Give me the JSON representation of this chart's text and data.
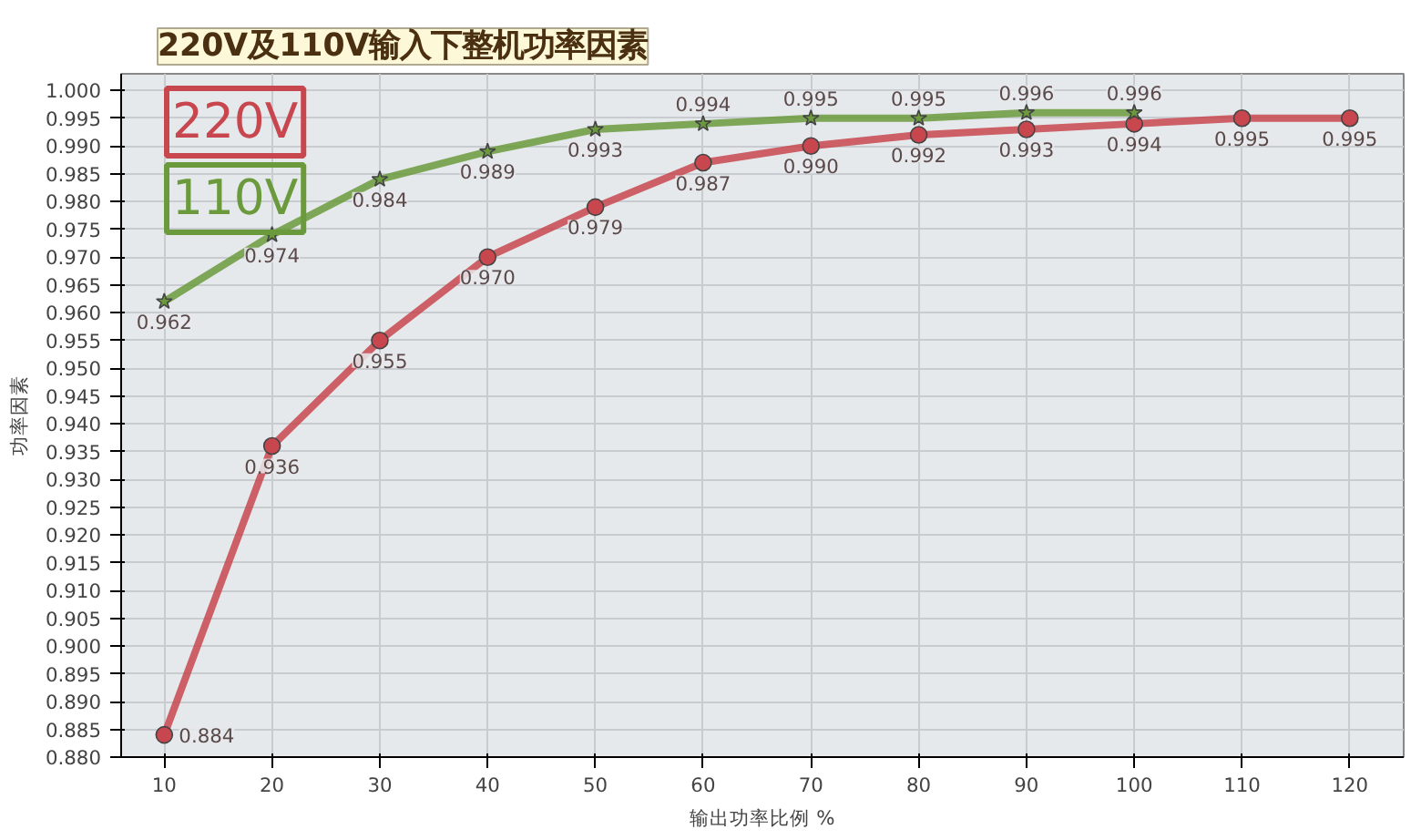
{
  "chart_data": {
    "type": "line",
    "title": "220V及110V输入下整机功率因素",
    "xlabel": "输出功率比例 %",
    "ylabel": "功率因素",
    "x": [
      10,
      20,
      30,
      40,
      50,
      60,
      70,
      80,
      90,
      100,
      110,
      120
    ],
    "series": [
      {
        "name": "220V",
        "color": "#c8474f",
        "marker": "circle",
        "values": [
          0.884,
          0.936,
          0.955,
          0.97,
          0.979,
          0.987,
          0.99,
          0.992,
          0.993,
          0.994,
          0.995,
          0.995
        ],
        "value_labels": [
          "0.884",
          "0.936",
          "0.955",
          "0.970",
          "0.979",
          "0.987",
          "0.990",
          "0.992",
          "0.993",
          "0.994",
          "0.995",
          "0.995"
        ]
      },
      {
        "name": "110V",
        "color": "#6a9a3c",
        "marker": "star",
        "x": [
          10,
          20,
          30,
          40,
          50,
          60,
          70,
          80,
          90,
          100
        ],
        "values": [
          0.962,
          0.974,
          0.984,
          0.989,
          0.993,
          0.994,
          0.995,
          0.995,
          0.996,
          0.996
        ],
        "value_labels": [
          "0.962",
          "0.974",
          "0.984",
          "0.989",
          "0.993",
          "0.994",
          "0.995",
          "0.995",
          "0.996",
          "0.996"
        ]
      }
    ],
    "xlim": [
      6,
      125
    ],
    "xticks": [
      10,
      20,
      30,
      40,
      50,
      60,
      70,
      80,
      90,
      100,
      110,
      120
    ],
    "ylim": [
      0.88,
      1.003
    ],
    "yticks": [
      {
        "value": 0.88,
        "label": "0.880"
      },
      {
        "value": 0.885,
        "label": "0.885"
      },
      {
        "value": 0.89,
        "label": "0.890"
      },
      {
        "value": 0.895,
        "label": "0.895"
      },
      {
        "value": 0.9,
        "label": "0.900"
      },
      {
        "value": 0.905,
        "label": "0.905"
      },
      {
        "value": 0.91,
        "label": "0.910"
      },
      {
        "value": 0.915,
        "label": "0.915"
      },
      {
        "value": 0.92,
        "label": "0.920"
      },
      {
        "value": 0.925,
        "label": "0.925"
      },
      {
        "value": 0.93,
        "label": "0.930"
      },
      {
        "value": 0.935,
        "label": "0.935"
      },
      {
        "value": 0.94,
        "label": "0.940"
      },
      {
        "value": 0.945,
        "label": "0.945"
      },
      {
        "value": 0.95,
        "label": "0.950"
      },
      {
        "value": 0.955,
        "label": "0.955"
      },
      {
        "value": 0.96,
        "label": "0.960"
      },
      {
        "value": 0.965,
        "label": "0.965"
      },
      {
        "value": 0.97,
        "label": "0.970"
      },
      {
        "value": 0.975,
        "label": "0.975"
      },
      {
        "value": 0.98,
        "label": "0.980"
      },
      {
        "value": 0.985,
        "label": "0.985"
      },
      {
        "value": 0.99,
        "label": "0.990"
      },
      {
        "value": 0.995,
        "label": "0.995"
      },
      {
        "value": 1.0,
        "label": "1.000"
      }
    ],
    "grid": true,
    "legend": "top left",
    "line_style": "solid"
  }
}
